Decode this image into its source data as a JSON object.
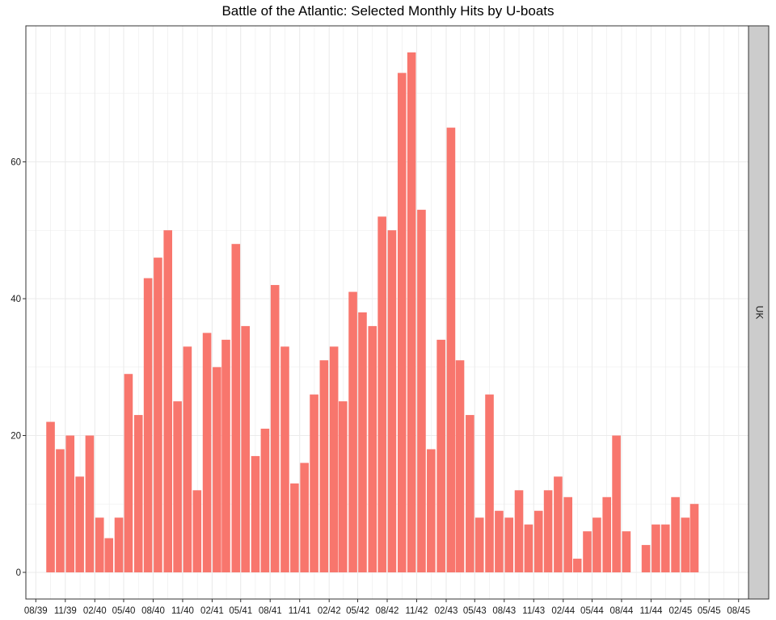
{
  "chart_data": {
    "type": "bar",
    "title": "Battle of the Atlantic: Selected Monthly Hits by U-boats",
    "xlabel": "",
    "ylabel": "",
    "facet_label": "UK",
    "bar_color": "#F8766D",
    "background_color": "#FFFFFF",
    "grid_color": "#EBEBEB",
    "strip_color": "#CCCCCC",
    "grid": true,
    "ylim": [
      0,
      80
    ],
    "yticks": [
      0,
      20,
      40,
      60
    ],
    "x_range": [
      "1939-07-01",
      "1945-09-01"
    ],
    "xticks": [
      {
        "date": "1939-08-01",
        "label": "08/39"
      },
      {
        "date": "1939-11-01",
        "label": "11/39"
      },
      {
        "date": "1940-02-01",
        "label": "02/40"
      },
      {
        "date": "1940-05-01",
        "label": "05/40"
      },
      {
        "date": "1940-08-01",
        "label": "08/40"
      },
      {
        "date": "1940-11-01",
        "label": "11/40"
      },
      {
        "date": "1941-02-01",
        "label": "02/41"
      },
      {
        "date": "1941-05-01",
        "label": "05/41"
      },
      {
        "date": "1941-08-01",
        "label": "08/41"
      },
      {
        "date": "1941-11-01",
        "label": "11/41"
      },
      {
        "date": "1942-02-01",
        "label": "02/42"
      },
      {
        "date": "1942-05-01",
        "label": "05/42"
      },
      {
        "date": "1942-08-01",
        "label": "08/42"
      },
      {
        "date": "1942-11-01",
        "label": "11/42"
      },
      {
        "date": "1943-02-01",
        "label": "02/43"
      },
      {
        "date": "1943-05-01",
        "label": "05/43"
      },
      {
        "date": "1943-08-01",
        "label": "08/43"
      },
      {
        "date": "1943-11-01",
        "label": "11/43"
      },
      {
        "date": "1944-02-01",
        "label": "02/44"
      },
      {
        "date": "1944-05-01",
        "label": "05/44"
      },
      {
        "date": "1944-08-01",
        "label": "08/44"
      },
      {
        "date": "1944-11-01",
        "label": "11/44"
      },
      {
        "date": "1945-02-01",
        "label": "02/45"
      },
      {
        "date": "1945-05-01",
        "label": "05/45"
      },
      {
        "date": "1945-08-01",
        "label": "08/45"
      }
    ],
    "categories": [
      "1939-09",
      "1939-10",
      "1939-11",
      "1939-12",
      "1940-01",
      "1940-02",
      "1940-03",
      "1940-04",
      "1940-05",
      "1940-06",
      "1940-07",
      "1940-08",
      "1940-09",
      "1940-10",
      "1940-11",
      "1940-12",
      "1941-01",
      "1941-02",
      "1941-03",
      "1941-04",
      "1941-05",
      "1941-06",
      "1941-07",
      "1941-08",
      "1941-09",
      "1941-10",
      "1941-11",
      "1941-12",
      "1942-01",
      "1942-02",
      "1942-03",
      "1942-04",
      "1942-05",
      "1942-06",
      "1942-07",
      "1942-08",
      "1942-09",
      "1942-10",
      "1942-11",
      "1942-12",
      "1943-01",
      "1943-02",
      "1943-03",
      "1943-04",
      "1943-05",
      "1943-06",
      "1943-07",
      "1943-08",
      "1943-09",
      "1943-10",
      "1943-11",
      "1943-12",
      "1944-01",
      "1944-02",
      "1944-03",
      "1944-04",
      "1944-05",
      "1944-06",
      "1944-07",
      "1944-08",
      "1944-09",
      "1944-10",
      "1944-11",
      "1944-12",
      "1945-01",
      "1945-02",
      "1945-03",
      "1945-04"
    ],
    "values": [
      22,
      18,
      20,
      14,
      20,
      8,
      5,
      8,
      29,
      23,
      43,
      46,
      50,
      25,
      33,
      12,
      35,
      30,
      34,
      48,
      36,
      17,
      21,
      42,
      33,
      13,
      16,
      26,
      31,
      33,
      25,
      41,
      38,
      36,
      52,
      50,
      73,
      76,
      53,
      18,
      34,
      65,
      31,
      23,
      8,
      26,
      9,
      8,
      12,
      7,
      9,
      12,
      14,
      11,
      2,
      6,
      8,
      11,
      20,
      6,
      0,
      4,
      7,
      7,
      11,
      8,
      10,
      0
    ]
  }
}
